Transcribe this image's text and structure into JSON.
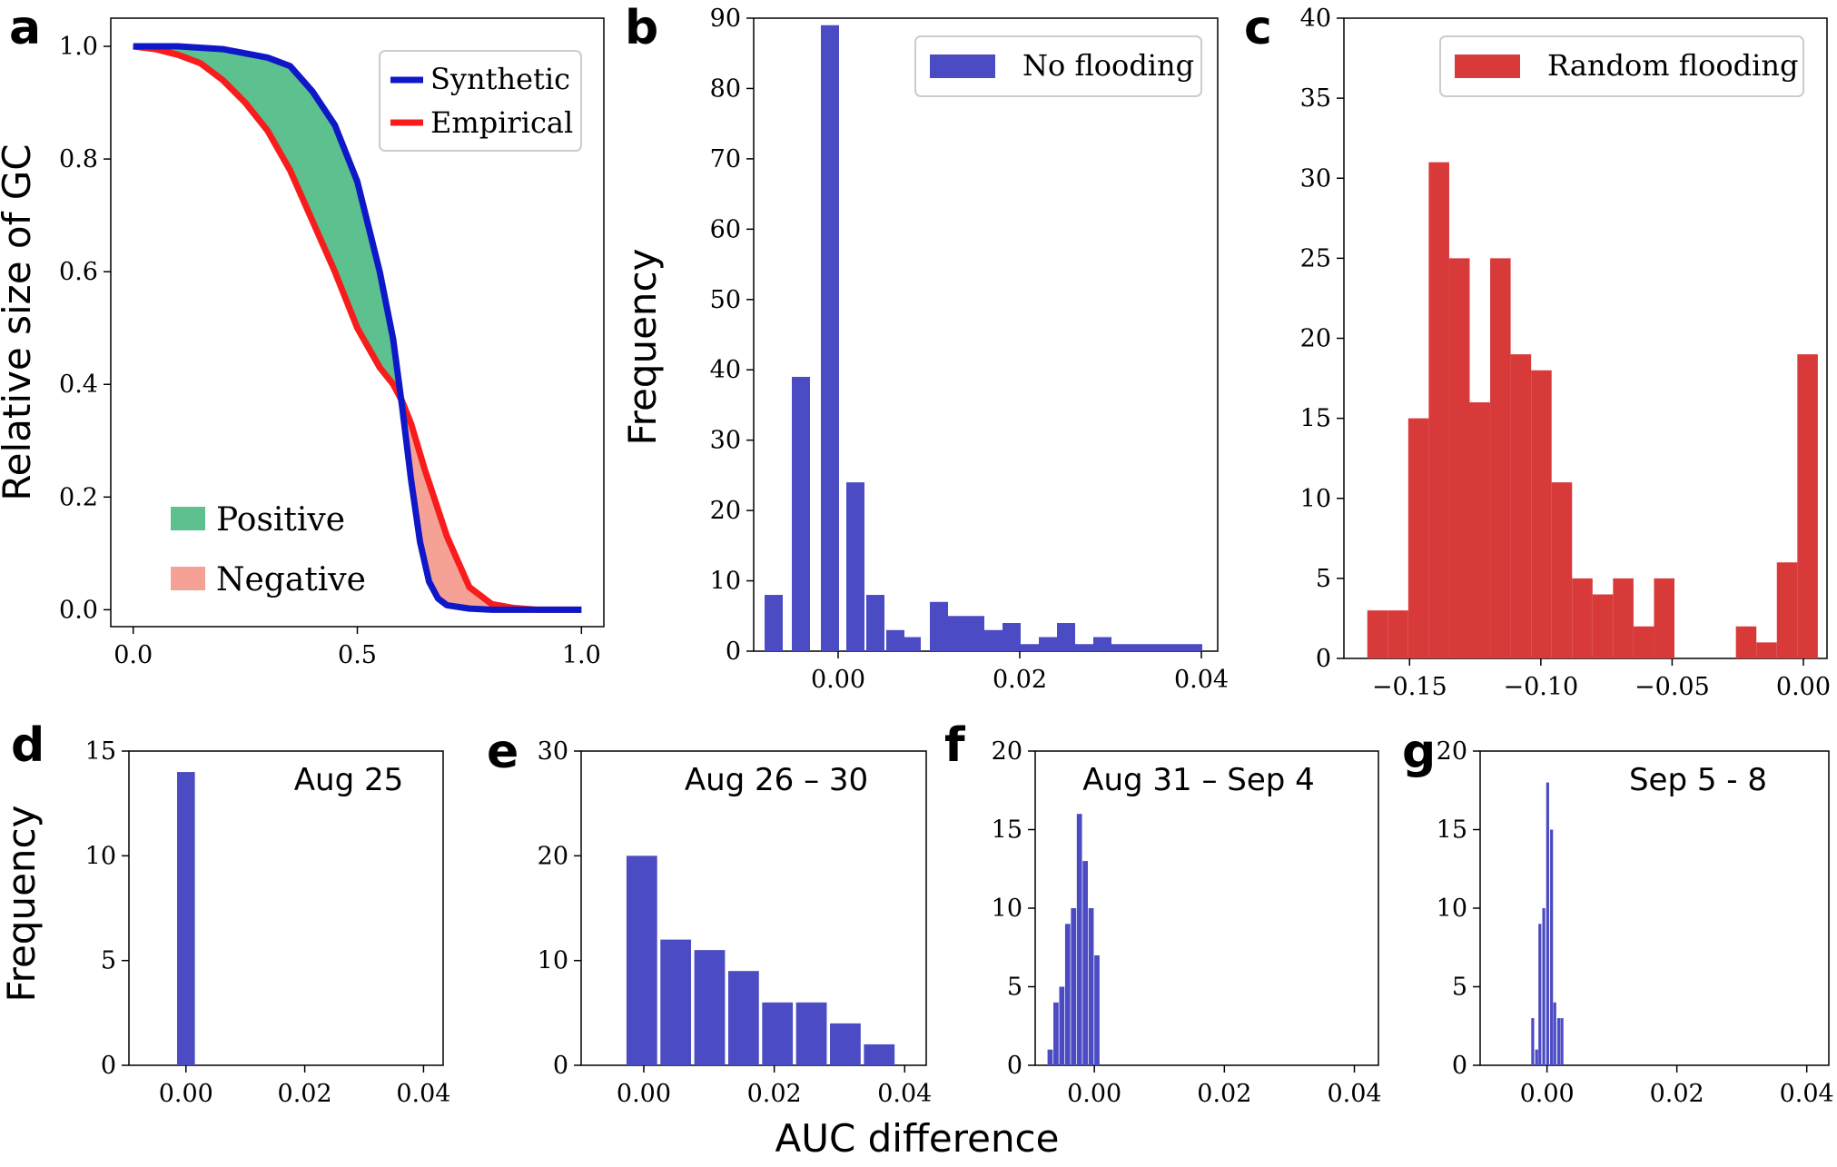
{
  "figure": {
    "xlabel_bottom": "AUC difference",
    "ylabel_top_left": "Relative size of GC",
    "ylabel_top_mid": "Frequency",
    "ylabel_bottom": "Frequency"
  },
  "colors": {
    "blue": "#4B4BC3",
    "red": "#D83A3A",
    "synthetic_line": "#0F18C8",
    "empirical_line": "#F81C1C",
    "positive_fill": "#5CC18E",
    "negative_fill": "#F6A195"
  },
  "chart_data": [
    {
      "panel": "a",
      "type": "line",
      "xlim": [
        -0.05,
        1.05
      ],
      "ylim": [
        -0.03,
        1.05
      ],
      "xticks": [
        "0.0",
        "0.5",
        "1.0"
      ],
      "yticks": [
        "0.0",
        "0.2",
        "0.4",
        "0.6",
        "0.8",
        "1.0"
      ],
      "legend": {
        "position": "top-right",
        "entries": [
          "Synthetic",
          "Empirical"
        ]
      },
      "annotations": [
        "Positive",
        "Negative"
      ],
      "series": [
        {
          "name": "Synthetic",
          "x": [
            0.0,
            0.1,
            0.2,
            0.3,
            0.35,
            0.4,
            0.45,
            0.5,
            0.55,
            0.58,
            0.6,
            0.62,
            0.64,
            0.66,
            0.68,
            0.7,
            0.75,
            0.8,
            0.9,
            1.0
          ],
          "y": [
            1.0,
            1.0,
            0.995,
            0.98,
            0.965,
            0.92,
            0.86,
            0.76,
            0.6,
            0.48,
            0.36,
            0.23,
            0.12,
            0.05,
            0.02,
            0.008,
            0.002,
            0.0,
            0.0,
            0.0
          ]
        },
        {
          "name": "Empirical",
          "x": [
            0.0,
            0.05,
            0.1,
            0.15,
            0.2,
            0.25,
            0.3,
            0.35,
            0.4,
            0.45,
            0.5,
            0.55,
            0.58,
            0.6,
            0.62,
            0.65,
            0.7,
            0.75,
            0.8,
            0.85,
            0.9,
            1.0
          ],
          "y": [
            1.0,
            0.995,
            0.985,
            0.97,
            0.94,
            0.9,
            0.85,
            0.78,
            0.69,
            0.6,
            0.5,
            0.43,
            0.4,
            0.37,
            0.33,
            0.25,
            0.13,
            0.04,
            0.01,
            0.003,
            0.0,
            0.0
          ]
        }
      ]
    },
    {
      "panel": "b",
      "type": "bar",
      "ylabel": "Frequency",
      "legend": {
        "position": "top-right",
        "entries": [
          "No flooding"
        ]
      },
      "xlim": [
        -0.0093,
        0.0418
      ],
      "ylim": [
        0,
        90
      ],
      "xticks": [
        "0.00",
        "0.02",
        "0.04"
      ],
      "yticks": [
        "0",
        "10",
        "20",
        "30",
        "40",
        "50",
        "60",
        "70",
        "80",
        "90"
      ],
      "bin_width": 0.002,
      "x": [
        -0.0071,
        -0.0041,
        -0.0009,
        0.0019,
        0.0041,
        0.0063,
        0.0081,
        0.0111,
        0.0131,
        0.0151,
        0.0171,
        0.0191,
        0.0211,
        0.0231,
        0.0251,
        0.0271,
        0.0291,
        0.0311,
        0.0331,
        0.0351,
        0.0371,
        0.0391
      ],
      "values": [
        8,
        39,
        89,
        24,
        8,
        3,
        2,
        7,
        5,
        5,
        3,
        4,
        1,
        2,
        4,
        1,
        2,
        1,
        1,
        1,
        1,
        1
      ]
    },
    {
      "panel": "c",
      "type": "bar",
      "legend": {
        "position": "top-right",
        "entries": [
          "Random flooding"
        ]
      },
      "xlim": [
        -0.175,
        0.009
      ],
      "ylim": [
        0,
        40
      ],
      "xticks": [
        "−0.15",
        "−0.10",
        "−0.05",
        "0.00"
      ],
      "yticks": [
        "0",
        "5",
        "10",
        "15",
        "20",
        "25",
        "30",
        "35",
        "40"
      ],
      "bin_width": 0.0078,
      "x": [
        -0.1622,
        -0.1544,
        -0.1466,
        -0.1388,
        -0.131,
        -0.1232,
        -0.1154,
        -0.1076,
        -0.0998,
        -0.092,
        -0.0842,
        -0.0764,
        -0.0686,
        -0.0608,
        -0.053,
        -0.0452,
        -0.0374,
        -0.0296,
        -0.0218,
        -0.014,
        -0.0062,
        0.0016
      ],
      "values": [
        3,
        3,
        15,
        31,
        25,
        16,
        25,
        19,
        18,
        11,
        5,
        4,
        5,
        2,
        5,
        0,
        0,
        0,
        2,
        1,
        6,
        19
      ]
    },
    {
      "panel": "d",
      "type": "bar",
      "title": "Aug 25",
      "xlim": [
        -0.0096,
        0.0433
      ],
      "ylim": [
        0,
        15
      ],
      "xticks": [
        "0.00",
        "0.02",
        "0.04"
      ],
      "yticks": [
        "0",
        "5",
        "10",
        "15"
      ],
      "bin_width": 0.003,
      "x": [
        0.0
      ],
      "values": [
        14
      ]
    },
    {
      "panel": "e",
      "type": "bar",
      "title": "Aug 26 – 30",
      "xlim": [
        -0.0096,
        0.0433
      ],
      "ylim": [
        0,
        30
      ],
      "xticks": [
        "0.00",
        "0.02",
        "0.04"
      ],
      "yticks": [
        "0",
        "10",
        "20",
        "30"
      ],
      "bin_width": 0.0047,
      "x": [
        -0.0003,
        0.0049,
        0.0101,
        0.0153,
        0.0205,
        0.0257,
        0.0309,
        0.0361
      ],
      "values": [
        20,
        12,
        11,
        9,
        6,
        6,
        4,
        2
      ]
    },
    {
      "panel": "f",
      "type": "bar",
      "title": "Aug 31 – Sep 4",
      "xlim": [
        -0.0091,
        0.0437
      ],
      "ylim": [
        0,
        20
      ],
      "xticks": [
        "0.00",
        "0.02",
        "0.04"
      ],
      "yticks": [
        "0",
        "5",
        "10",
        "15",
        "20"
      ],
      "bin_width": 0.0008,
      "x": [
        -0.0068,
        -0.0059,
        -0.005,
        -0.0041,
        -0.0032,
        -0.0023,
        -0.0014,
        -0.0005,
        0.0004
      ],
      "values": [
        1,
        4,
        5,
        9,
        10,
        16,
        13,
        10,
        7
      ]
    },
    {
      "panel": "g",
      "type": "bar",
      "title": "Sep 5 - 8",
      "xlim": [
        -0.0103,
        0.0434
      ],
      "ylim": [
        0,
        20
      ],
      "xticks": [
        "0.00",
        "0.02",
        "0.04"
      ],
      "yticks": [
        "0",
        "5",
        "10",
        "15",
        "20"
      ],
      "bin_width": 0.00045,
      "x": [
        -0.0022,
        -0.0016,
        -0.0011,
        -0.0005,
        0.0001,
        0.0007,
        0.0012,
        0.0018,
        0.0023
      ],
      "values": [
        3,
        1,
        9,
        10,
        18,
        15,
        4,
        3,
        3
      ]
    }
  ]
}
